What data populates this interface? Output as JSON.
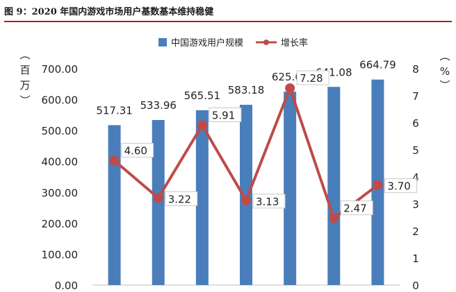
{
  "figure": {
    "title": "图 9：2020 年国内游戏市场用户基数基本维持稳健"
  },
  "chart_data": {
    "type": "bar",
    "categories": [
      "",
      "",
      "",
      "",
      "",
      "",
      ""
    ],
    "series": [
      {
        "name": "中国游戏用户规模",
        "type": "bar",
        "axis": "left",
        "color": "#4a7ebb",
        "values": [
          517.31,
          533.96,
          565.51,
          583.18,
          625.66,
          641.08,
          664.79
        ],
        "labels": [
          "517.31",
          "533.96",
          "565.51",
          "583.18",
          "625.66",
          "641.08",
          "664.79"
        ]
      },
      {
        "name": "增长率",
        "type": "line",
        "axis": "right",
        "color": "#be4b48",
        "values": [
          4.6,
          3.22,
          5.91,
          3.13,
          7.28,
          2.47,
          3.7
        ],
        "labels": [
          "4.60",
          "3.22",
          "5.91",
          "3.13",
          "7.28",
          "2.47",
          "3.70"
        ]
      }
    ],
    "y_left": {
      "label": "百万",
      "range": [
        0,
        700
      ],
      "ticks": [
        "0.00",
        "100.00",
        "200.00",
        "300.00",
        "400.00",
        "500.00",
        "600.00",
        "700.00"
      ]
    },
    "y_right": {
      "label": "%",
      "range": [
        0,
        8
      ],
      "ticks": [
        "0",
        "1",
        "2",
        "3",
        "4",
        "5",
        "6",
        "7",
        "8"
      ]
    },
    "grid": false,
    "legend": "top"
  }
}
